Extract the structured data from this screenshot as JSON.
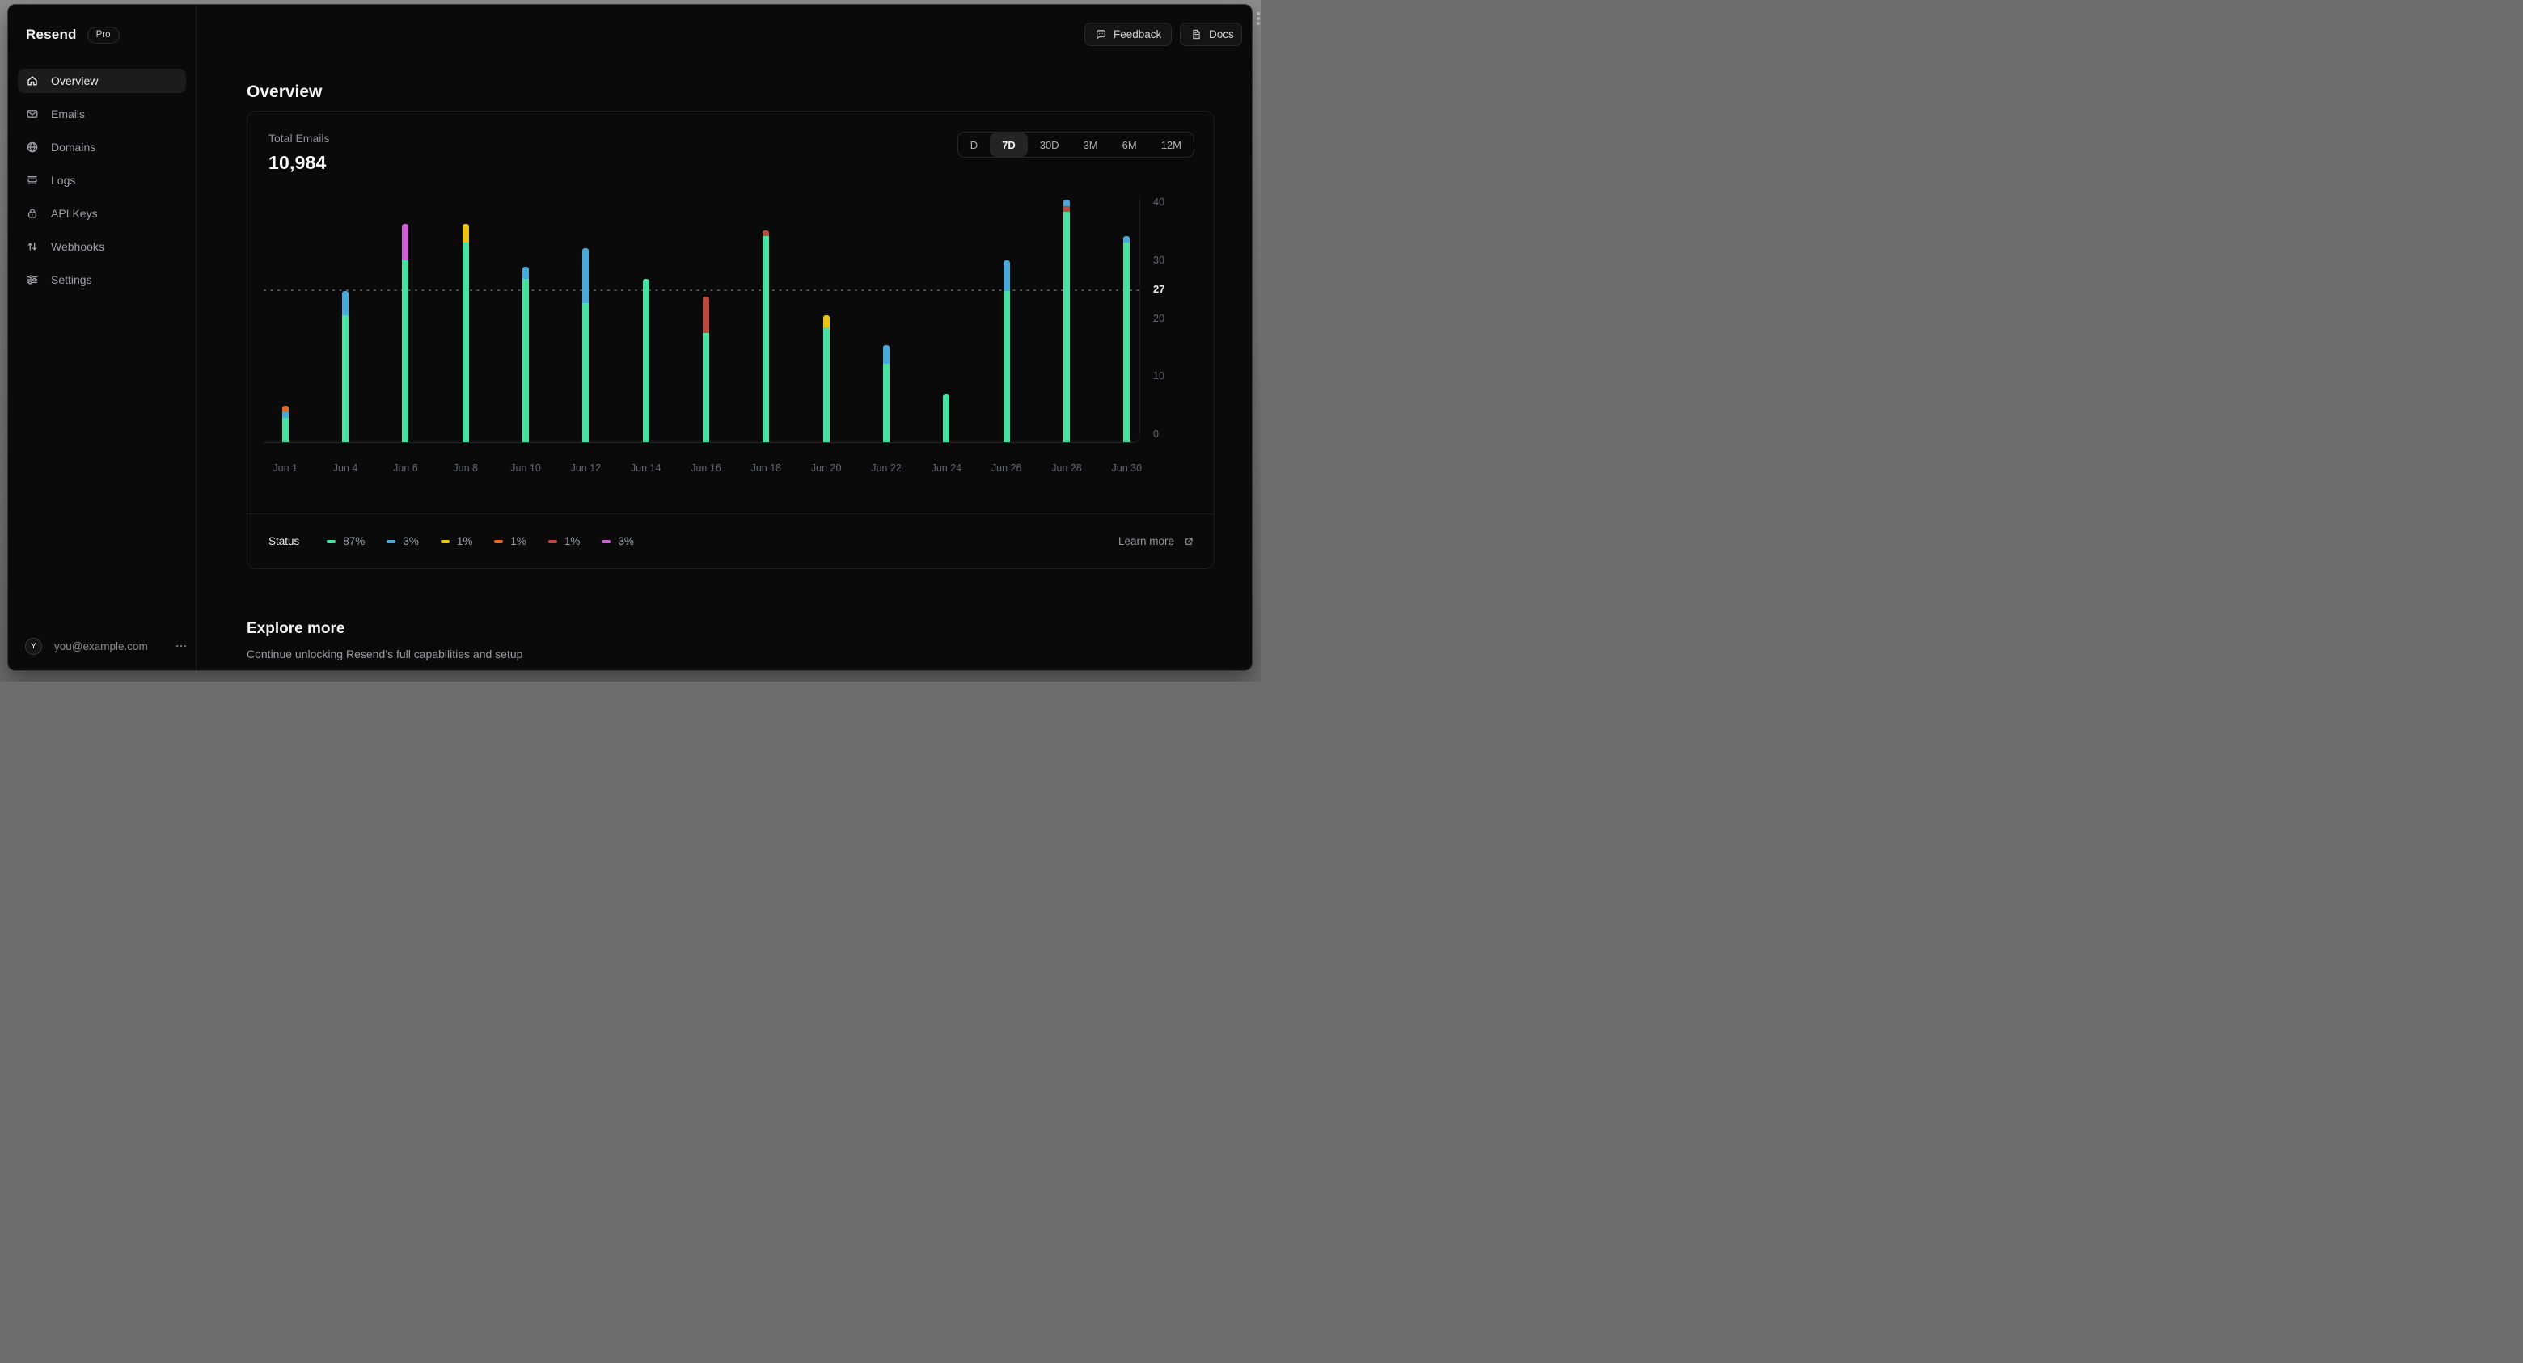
{
  "window": {
    "brand": "Resend",
    "plan_badge": "Pro"
  },
  "frame": {
    "dots_icon": "vertical-drag-dots-icon"
  },
  "topbar": {
    "feedback_label": "Feedback",
    "feedback_icon": "feedback-bubble-icon",
    "docs_label": "Docs",
    "docs_icon": "document-icon"
  },
  "sidebar": {
    "items": [
      {
        "icon": "home-icon",
        "label": "Overview",
        "active": true
      },
      {
        "icon": "mail-icon",
        "label": "Emails",
        "active": false
      },
      {
        "icon": "globe-icon",
        "label": "Domains",
        "active": false
      },
      {
        "icon": "logs-icon",
        "label": "Logs",
        "active": false
      },
      {
        "icon": "lock-icon",
        "label": "API Keys",
        "active": false
      },
      {
        "icon": "arrows-up-down-icon",
        "label": "Webhooks",
        "active": false
      },
      {
        "icon": "sliders-icon",
        "label": "Settings",
        "active": false
      }
    ],
    "account": {
      "avatar_initial": "Y",
      "email": "you@example.com",
      "menu_icon": "ellipsis-icon"
    }
  },
  "page": {
    "title": "Overview"
  },
  "card": {
    "metric_label": "Total Emails",
    "metric_value": "10,984",
    "ranges": [
      "D",
      "7D",
      "30D",
      "3M",
      "6M",
      "12M"
    ],
    "active_range": "7D",
    "legend": {
      "title": "Status",
      "items": [
        {
          "color": "#47e2a1",
          "label": "87%"
        },
        {
          "color": "#49a9da",
          "label": "3%"
        },
        {
          "color": "#e9c315",
          "label": "1%"
        },
        {
          "color": "#e0692c",
          "label": "1%"
        },
        {
          "color": "#bc4a41",
          "label": "1%"
        },
        {
          "color": "#cf5fd6",
          "label": "3%"
        }
      ],
      "learn_more_label": "Learn more",
      "learn_more_icon": "external-link-icon"
    }
  },
  "chart_data": {
    "type": "bar",
    "stacked": true,
    "title": "Total Emails",
    "categories": [
      "Jun 1",
      "Jun 4",
      "Jun 6",
      "Jun 8",
      "Jun 10",
      "Jun 12",
      "Jun 14",
      "Jun 16",
      "Jun 18",
      "Jun 20",
      "Jun 22",
      "Jun 24",
      "Jun 26",
      "Jun 28",
      "Jun 30"
    ],
    "series": [
      {
        "name": "green",
        "color": "#47e2a1",
        "values": [
          4,
          21,
          30,
          33,
          27,
          23,
          27,
          18,
          34,
          19,
          13,
          8,
          25,
          38,
          33
        ]
      },
      {
        "name": "red",
        "color": "#bc4a41",
        "values": [
          0,
          0,
          0,
          0,
          0,
          0,
          0,
          6,
          1,
          0,
          0,
          0,
          0,
          1,
          0
        ]
      },
      {
        "name": "blue",
        "color": "#49a9da",
        "values": [
          1,
          4,
          0,
          0,
          2,
          9,
          0,
          0,
          0,
          0,
          3,
          0,
          5,
          1,
          1
        ]
      },
      {
        "name": "yellow",
        "color": "#e9c315",
        "values": [
          0,
          0,
          0,
          3,
          0,
          0,
          0,
          0,
          0,
          2,
          0,
          0,
          0,
          0,
          0
        ]
      },
      {
        "name": "orange",
        "color": "#e0692c",
        "values": [
          1,
          0,
          0,
          0,
          0,
          0,
          0,
          0,
          0,
          0,
          0,
          0,
          0,
          0,
          0
        ]
      },
      {
        "name": "magenta",
        "color": "#cf5fd6",
        "values": [
          0,
          0,
          6,
          0,
          0,
          0,
          0,
          0,
          0,
          0,
          0,
          0,
          0,
          0,
          0
        ]
      }
    ],
    "ylim": [
      0,
      40
    ],
    "yticks": [
      0,
      10,
      20,
      30,
      40
    ],
    "reference_line": {
      "value": 27,
      "style": "dashed"
    },
    "grid": false,
    "legend_position": "bottom"
  },
  "explore": {
    "title": "Explore more",
    "subtitle": "Continue unlocking Resend’s full capabilities and setup"
  }
}
